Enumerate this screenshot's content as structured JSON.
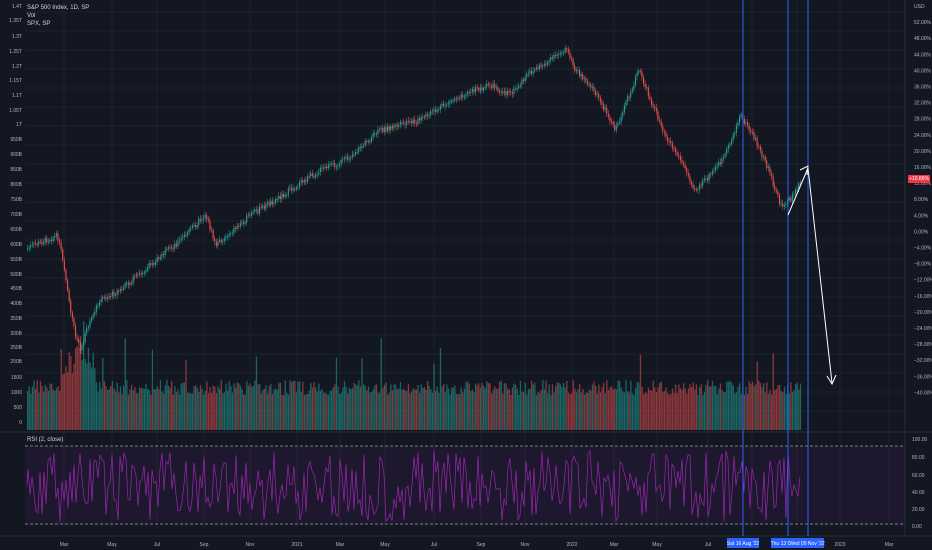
{
  "legend": {
    "symbol": "S&P 500 Index, 1D, SP",
    "vol": "Vol",
    "compare": "SPX, SP"
  },
  "rsi_label": "RSI (2, close)",
  "price_tag": "+10.86%",
  "left_axis": [
    "1.4T",
    "1.35T",
    "1.3T",
    "1.25T",
    "1.2T",
    "1.15T",
    "1.1T",
    "1.05T",
    "1T",
    "950B",
    "900B",
    "850B",
    "800B",
    "750B",
    "700B",
    "650B",
    "600B",
    "550B",
    "500B",
    "450B",
    "400B",
    "350B",
    "300B",
    "250B",
    "200B",
    "1500",
    "1000",
    "500",
    "0"
  ],
  "right_axis": [
    "USD",
    "52.00%",
    "48.00%",
    "44.00%",
    "40.00%",
    "36.00%",
    "32.00%",
    "28.00%",
    "24.00%",
    "20.00%",
    "16.00%",
    "12.00%",
    "8.00%",
    "4.00%",
    "0.00%",
    "−4.00%",
    "−8.00%",
    "−12.00%",
    "−16.00%",
    "−20.00%",
    "−24.00%",
    "−28.00%",
    "−32.00%",
    "−36.00%",
    "−40.00%"
  ],
  "rsi_axis": [
    "100.00",
    "80.00",
    "60.00",
    "40.00",
    "20.00",
    "0.00"
  ],
  "time_axis": [
    "Mar",
    "May",
    "Jul",
    "Sep",
    "Nov",
    "2021",
    "Mar",
    "May",
    "Jul",
    "Sep",
    "Nov",
    "2022",
    "Mar",
    "May",
    "Jul",
    "Sep",
    "Nov",
    "2023",
    "Mar"
  ],
  "vertical_line_labels": [
    "Sat 16 Aug '22",
    "Thu 13 O",
    "Wed 09 Nov '22"
  ],
  "colors": {
    "up": "#26a69a",
    "down": "#ef5350",
    "rsi": "#9c27b0",
    "vline": "#2962ff",
    "arrow": "#ffffff"
  }
}
